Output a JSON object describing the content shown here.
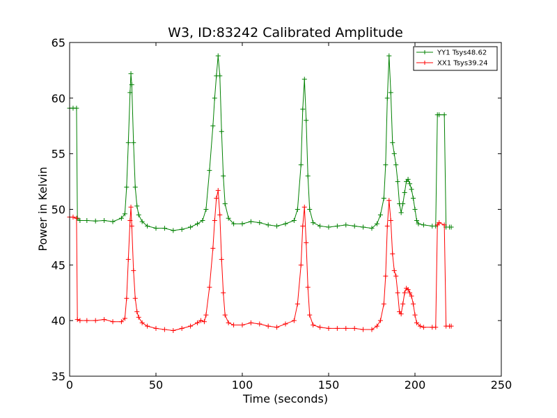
{
  "chart_data": {
    "type": "line",
    "title": "W3, ID:83242 Calibrated Amplitude",
    "xlabel": "Time (seconds)",
    "ylabel": "Power in Kelvin",
    "xlim": [
      0,
      250
    ],
    "ylim": [
      35,
      65
    ],
    "xticks": [
      "0",
      "50",
      "100",
      "150",
      "200",
      "250"
    ],
    "yticks": [
      "35",
      "40",
      "45",
      "50",
      "55",
      "60",
      "65"
    ],
    "grid": false,
    "legend_position": "top-right",
    "marker": "plus",
    "series": [
      {
        "name": "YY1 Tsys48.62",
        "color": "#008000",
        "points": [
          [
            0,
            59.1
          ],
          [
            2,
            59.1
          ],
          [
            4,
            59.1
          ],
          [
            4.5,
            49.2
          ],
          [
            6,
            49.0
          ],
          [
            10,
            49.0
          ],
          [
            15,
            48.95
          ],
          [
            20,
            49.0
          ],
          [
            25,
            48.9
          ],
          [
            30,
            49.2
          ],
          [
            32,
            49.6
          ],
          [
            33,
            52.0
          ],
          [
            34,
            56.0
          ],
          [
            35,
            60.5
          ],
          [
            35.5,
            62.2
          ],
          [
            36,
            61.2
          ],
          [
            37,
            56.0
          ],
          [
            38,
            52.0
          ],
          [
            39,
            50.3
          ],
          [
            40,
            49.5
          ],
          [
            42,
            48.9
          ],
          [
            45,
            48.5
          ],
          [
            50,
            48.3
          ],
          [
            55,
            48.3
          ],
          [
            60,
            48.1
          ],
          [
            65,
            48.2
          ],
          [
            70,
            48.4
          ],
          [
            74,
            48.7
          ],
          [
            77,
            49.0
          ],
          [
            79,
            50.0
          ],
          [
            81,
            53.5
          ],
          [
            83,
            57.5
          ],
          [
            84,
            60.0
          ],
          [
            85,
            62.0
          ],
          [
            86,
            63.8
          ],
          [
            87,
            62.0
          ],
          [
            88,
            57.0
          ],
          [
            89,
            53.0
          ],
          [
            90,
            50.5
          ],
          [
            92,
            49.2
          ],
          [
            95,
            48.7
          ],
          [
            100,
            48.7
          ],
          [
            105,
            48.9
          ],
          [
            110,
            48.8
          ],
          [
            115,
            48.6
          ],
          [
            120,
            48.5
          ],
          [
            125,
            48.7
          ],
          [
            130,
            49.0
          ],
          [
            132,
            50.0
          ],
          [
            134,
            54.0
          ],
          [
            135,
            59.0
          ],
          [
            136,
            61.7
          ],
          [
            137,
            58.0
          ],
          [
            138,
            53.0
          ],
          [
            139,
            50.0
          ],
          [
            141,
            48.8
          ],
          [
            145,
            48.5
          ],
          [
            150,
            48.4
          ],
          [
            155,
            48.5
          ],
          [
            160,
            48.6
          ],
          [
            165,
            48.5
          ],
          [
            170,
            48.4
          ],
          [
            175,
            48.3
          ],
          [
            178,
            48.7
          ],
          [
            180,
            49.5
          ],
          [
            182,
            51.0
          ],
          [
            183,
            54.0
          ],
          [
            184,
            60.0
          ],
          [
            185,
            63.8
          ],
          [
            186,
            60.5
          ],
          [
            187,
            56.0
          ],
          [
            188,
            55.0
          ],
          [
            189,
            54.0
          ],
          [
            190,
            52.5
          ],
          [
            191,
            50.5
          ],
          [
            192,
            49.7
          ],
          [
            193,
            50.5
          ],
          [
            194,
            51.5
          ],
          [
            195,
            52.5
          ],
          [
            196,
            52.7
          ],
          [
            197,
            52.3
          ],
          [
            198,
            51.8
          ],
          [
            199,
            51.0
          ],
          [
            200,
            50.0
          ],
          [
            201,
            49.0
          ],
          [
            202,
            48.7
          ],
          [
            205,
            48.6
          ],
          [
            210,
            48.5
          ],
          [
            212,
            48.5
          ],
          [
            213,
            58.5
          ],
          [
            214,
            58.5
          ],
          [
            217,
            58.5
          ],
          [
            218,
            48.4
          ],
          [
            220,
            48.4
          ],
          [
            221,
            48.4
          ]
        ]
      },
      {
        "name": "XX1 Tsys39.24",
        "color": "#ff0000",
        "points": [
          [
            0,
            49.3
          ],
          [
            2,
            49.3
          ],
          [
            4,
            49.2
          ],
          [
            4.5,
            40.1
          ],
          [
            6,
            40.0
          ],
          [
            10,
            40.0
          ],
          [
            15,
            40.0
          ],
          [
            20,
            40.1
          ],
          [
            25,
            39.9
          ],
          [
            30,
            39.9
          ],
          [
            32,
            40.2
          ],
          [
            33,
            42.0
          ],
          [
            34,
            45.5
          ],
          [
            35,
            49.0
          ],
          [
            35.5,
            50.2
          ],
          [
            36,
            48.5
          ],
          [
            37,
            44.5
          ],
          [
            38,
            42.0
          ],
          [
            39,
            40.8
          ],
          [
            40,
            40.3
          ],
          [
            42,
            39.8
          ],
          [
            45,
            39.5
          ],
          [
            50,
            39.3
          ],
          [
            55,
            39.2
          ],
          [
            60,
            39.1
          ],
          [
            65,
            39.3
          ],
          [
            70,
            39.5
          ],
          [
            74,
            39.8
          ],
          [
            76,
            40.0
          ],
          [
            78,
            39.9
          ],
          [
            79,
            40.5
          ],
          [
            81,
            43.0
          ],
          [
            83,
            46.5
          ],
          [
            84,
            49.0
          ],
          [
            85,
            51.0
          ],
          [
            86,
            51.7
          ],
          [
            87,
            49.5
          ],
          [
            88,
            45.5
          ],
          [
            89,
            42.5
          ],
          [
            90,
            40.5
          ],
          [
            92,
            39.8
          ],
          [
            95,
            39.6
          ],
          [
            100,
            39.6
          ],
          [
            105,
            39.8
          ],
          [
            110,
            39.7
          ],
          [
            115,
            39.5
          ],
          [
            120,
            39.4
          ],
          [
            125,
            39.7
          ],
          [
            130,
            40.0
          ],
          [
            132,
            41.5
          ],
          [
            134,
            45.0
          ],
          [
            135,
            48.5
          ],
          [
            136,
            50.2
          ],
          [
            137,
            47.0
          ],
          [
            138,
            43.0
          ],
          [
            139,
            40.5
          ],
          [
            141,
            39.6
          ],
          [
            145,
            39.4
          ],
          [
            150,
            39.3
          ],
          [
            155,
            39.3
          ],
          [
            160,
            39.3
          ],
          [
            165,
            39.3
          ],
          [
            170,
            39.2
          ],
          [
            175,
            39.2
          ],
          [
            178,
            39.5
          ],
          [
            180,
            40.0
          ],
          [
            182,
            41.5
          ],
          [
            183,
            44.0
          ],
          [
            184,
            48.5
          ],
          [
            185,
            50.8
          ],
          [
            186,
            49.0
          ],
          [
            187,
            46.0
          ],
          [
            188,
            44.5
          ],
          [
            189,
            44.0
          ],
          [
            190,
            42.5
          ],
          [
            191,
            40.8
          ],
          [
            192,
            40.6
          ],
          [
            193,
            41.5
          ],
          [
            194,
            42.5
          ],
          [
            195,
            42.9
          ],
          [
            196,
            42.8
          ],
          [
            197,
            42.5
          ],
          [
            198,
            42.2
          ],
          [
            199,
            41.5
          ],
          [
            200,
            40.5
          ],
          [
            201,
            39.8
          ],
          [
            203,
            39.5
          ],
          [
            205,
            39.4
          ],
          [
            210,
            39.4
          ],
          [
            212,
            39.4
          ],
          [
            213,
            48.6
          ],
          [
            214,
            48.8
          ],
          [
            217,
            48.6
          ],
          [
            218,
            39.5
          ],
          [
            220,
            39.5
          ],
          [
            221,
            39.5
          ]
        ]
      }
    ]
  }
}
